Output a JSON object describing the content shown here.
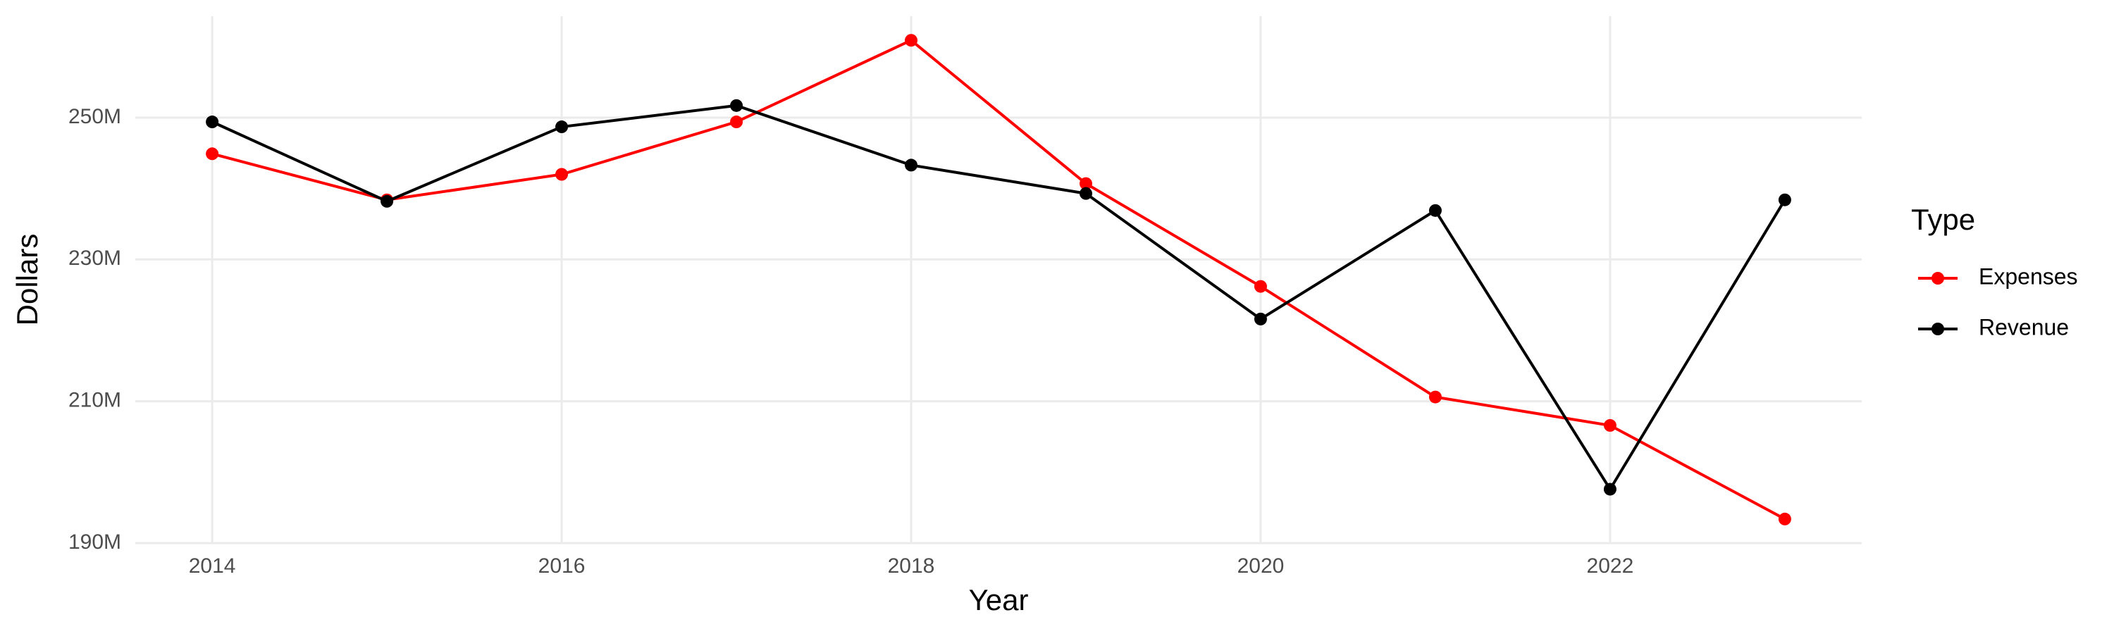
{
  "chart_data": {
    "type": "line",
    "x_label": "Year",
    "y_label": "Dollars",
    "x": [
      2014,
      2015,
      2016,
      2017,
      2018,
      2019,
      2020,
      2021,
      2022,
      2023
    ],
    "series": [
      {
        "name": "Expenses",
        "color": "#ff0000",
        "values": [
          244900000,
          238400000,
          242000000,
          249400000,
          260900000,
          240700000,
          226200000,
          210600000,
          206600000,
          193400000
        ]
      },
      {
        "name": "Revenue",
        "color": "#000000",
        "values": [
          249400000,
          238200000,
          248700000,
          251700000,
          243300000,
          239300000,
          221600000,
          236900000,
          197600000,
          238400000
        ]
      }
    ],
    "xlim": [
      2013.56,
      2023.44
    ],
    "xticks": [
      2014,
      2016,
      2018,
      2020,
      2022
    ],
    "ylim": [
      190000000,
      264300000
    ],
    "yticks": [
      {
        "value": 190000000,
        "label": "190M"
      },
      {
        "value": 210000000,
        "label": "210M"
      },
      {
        "value": 230000000,
        "label": "230M"
      },
      {
        "value": 250000000,
        "label": "250M"
      }
    ],
    "grid": true,
    "legend_title": "Type",
    "legend_position": "right"
  }
}
